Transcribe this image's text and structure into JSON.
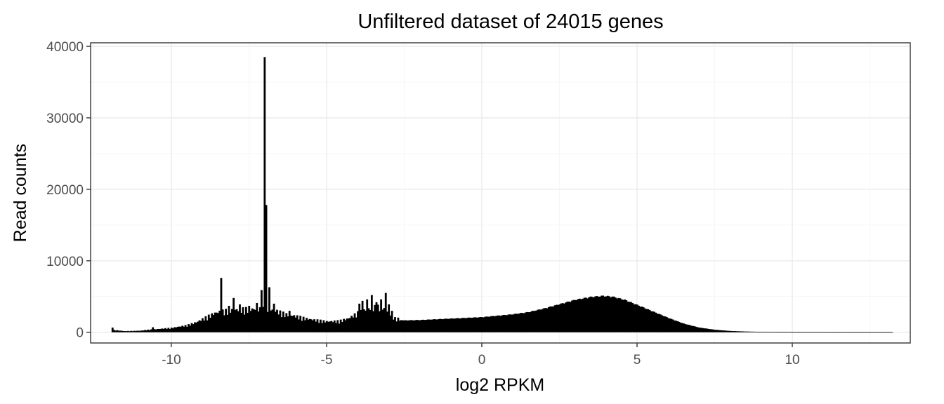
{
  "chart_data": {
    "type": "bar",
    "title": "Unfiltered dataset of 24015 genes",
    "xlabel": "log2 RPKM",
    "ylabel": "Read counts",
    "xlim": [
      -12.6,
      13.8
    ],
    "ylim": [
      -1500,
      40500
    ],
    "x_ticks": [
      -10,
      -5,
      0,
      5,
      10
    ],
    "x_tick_labels": [
      "-10",
      "-5",
      "0",
      "5",
      "10"
    ],
    "y_ticks": [
      0,
      10000,
      20000,
      30000,
      40000
    ],
    "y_tick_labels": [
      "0",
      "10000",
      "20000",
      "30000",
      "40000"
    ],
    "grid": true,
    "bar_color": "#000000",
    "bin_width": 0.05,
    "profile": [
      [
        -11.9,
        300
      ],
      [
        -11.5,
        150
      ],
      [
        -11.0,
        200
      ],
      [
        -10.8,
        300
      ],
      [
        -10.5,
        400
      ],
      [
        -10.2,
        500
      ],
      [
        -10.0,
        550
      ],
      [
        -9.8,
        700
      ],
      [
        -9.5,
        900
      ],
      [
        -9.2,
        1300
      ],
      [
        -9.0,
        1700
      ],
      [
        -8.8,
        2100
      ],
      [
        -8.6,
        2500
      ],
      [
        -8.4,
        2700
      ],
      [
        -8.0,
        2900
      ],
      [
        -7.6,
        3000
      ],
      [
        -7.3,
        3000
      ],
      [
        -7.1,
        3000
      ],
      [
        -6.9,
        3000
      ],
      [
        -6.7,
        2900
      ],
      [
        -6.5,
        2600
      ],
      [
        -6.3,
        2300
      ],
      [
        -6.0,
        2100
      ],
      [
        -5.7,
        1800
      ],
      [
        -5.4,
        1600
      ],
      [
        -5.0,
        1400
      ],
      [
        -4.6,
        1450
      ],
      [
        -4.3,
        1800
      ],
      [
        -4.0,
        2500
      ],
      [
        -3.7,
        3000
      ],
      [
        -3.4,
        3300
      ],
      [
        -3.2,
        3200
      ],
      [
        -3.0,
        2600
      ],
      [
        -2.8,
        1800
      ],
      [
        -2.5,
        1650
      ],
      [
        -2.0,
        1700
      ],
      [
        -1.5,
        1800
      ],
      [
        -1.0,
        1900
      ],
      [
        -0.5,
        2000
      ],
      [
        0.0,
        2100
      ],
      [
        0.5,
        2300
      ],
      [
        1.0,
        2500
      ],
      [
        1.5,
        2800
      ],
      [
        2.0,
        3300
      ],
      [
        2.5,
        3900
      ],
      [
        3.0,
        4500
      ],
      [
        3.5,
        4900
      ],
      [
        3.9,
        5050
      ],
      [
        4.2,
        4950
      ],
      [
        4.6,
        4500
      ],
      [
        5.0,
        3800
      ],
      [
        5.5,
        2900
      ],
      [
        6.0,
        2000
      ],
      [
        6.5,
        1200
      ],
      [
        7.0,
        650
      ],
      [
        7.5,
        350
      ],
      [
        8.0,
        180
      ],
      [
        8.5,
        100
      ],
      [
        9.0,
        60
      ],
      [
        9.5,
        40
      ],
      [
        10.0,
        25
      ],
      [
        11.0,
        15
      ],
      [
        12.0,
        10
      ],
      [
        13.2,
        8
      ]
    ],
    "spikes": [
      [
        -11.9,
        650
      ],
      [
        -10.6,
        700
      ],
      [
        -8.4,
        7600
      ],
      [
        -8.15,
        3700
      ],
      [
        -8.0,
        4800
      ],
      [
        -7.8,
        3900
      ],
      [
        -7.5,
        3700
      ],
      [
        -7.25,
        4100
      ],
      [
        -7.1,
        5900
      ],
      [
        -7.0,
        38500
      ],
      [
        -6.95,
        17800
      ],
      [
        -6.85,
        6300
      ],
      [
        -6.7,
        4000
      ],
      [
        -6.2,
        3000
      ],
      [
        -3.95,
        4000
      ],
      [
        -3.85,
        4400
      ],
      [
        -3.7,
        4600
      ],
      [
        -3.55,
        5200
      ],
      [
        -3.4,
        4200
      ],
      [
        -3.25,
        4600
      ],
      [
        -3.12,
        5500
      ],
      [
        -3.0,
        3900
      ],
      [
        -2.9,
        3000
      ]
    ]
  }
}
